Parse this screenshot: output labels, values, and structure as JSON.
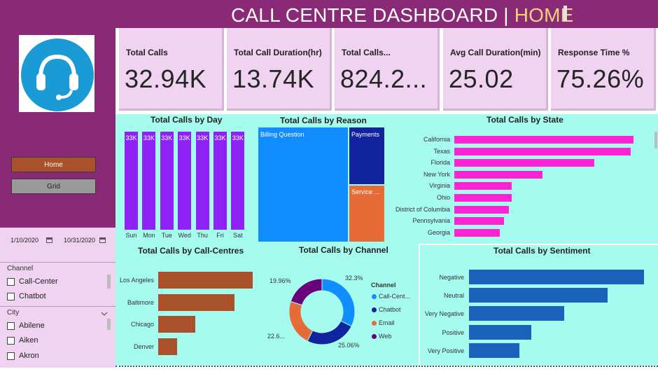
{
  "header": {
    "title": "CALL CENTRE DASHBOARD",
    "separator": " | ",
    "page": "HOME"
  },
  "nav": {
    "home_label": "Home",
    "grid_label": "Grid"
  },
  "filters": {
    "date_start": "1/10/2020",
    "date_end": "10/31/2020",
    "channel": {
      "label": "Channel",
      "options": [
        "Call-Center",
        "Chatbot"
      ]
    },
    "city": {
      "label": "City",
      "options": [
        "Abilene",
        "Aiken",
        "Akron"
      ]
    }
  },
  "kpis": [
    {
      "label": "Total Calls",
      "value": "32.94K"
    },
    {
      "label": "Total Call Duration(hr)",
      "value": "13.74K"
    },
    {
      "label": "Total Calls...",
      "value": "824.2..."
    },
    {
      "label": "Avg Call Duration(min)",
      "value": "25.02"
    },
    {
      "label": "Response Time %",
      "value": "75.26%"
    }
  ],
  "colors": {
    "header": "#8a2a77",
    "panel": "#a6fbef",
    "kpi_card": "#f0d3f0",
    "accent_highlight": "#f2d27a"
  },
  "icons": {
    "logo": "headset-support-icon",
    "calendar": "calendar-icon",
    "chevron": "chevron-down-icon"
  },
  "chart_data": [
    {
      "id": "calls_by_day",
      "type": "bar",
      "title": "Total Calls by Day",
      "categories": [
        "Sun",
        "Mon",
        "Tue",
        "Wed",
        "Thu",
        "Fri",
        "Sat"
      ],
      "values": [
        33,
        33,
        33,
        33,
        33,
        33,
        33
      ],
      "data_labels": [
        "33K",
        "33K",
        "33K",
        "33K",
        "33K",
        "33K",
        "33K"
      ],
      "color": "#8e22f5"
    },
    {
      "id": "calls_by_reason",
      "type": "treemap",
      "title": "Total Calls by Reason",
      "categories": [
        "Billing Question",
        "Payments",
        "Service ..."
      ],
      "colors": [
        "#118dff",
        "#12239e",
        "#e66c37"
      ]
    },
    {
      "id": "calls_by_state",
      "type": "bar",
      "orientation": "horizontal",
      "title": "Total Calls by State",
      "categories": [
        "California",
        "Texas",
        "Florida",
        "New York",
        "Virginia",
        "Ohio",
        "District of Columbia",
        "Pennsylvania",
        "Georgia"
      ],
      "values": [
        255,
        251,
        199,
        126,
        82,
        82,
        78,
        71,
        65
      ],
      "color": "#ff22d4"
    },
    {
      "id": "calls_by_centre",
      "type": "bar",
      "orientation": "horizontal",
      "title": "Total Calls by Call-Centres",
      "categories": [
        "Los Angeles",
        "Baltimore",
        "Chicago",
        "Denver"
      ],
      "values": [
        135,
        109,
        53,
        27
      ],
      "color": "#a9512b"
    },
    {
      "id": "calls_by_channel",
      "type": "pie",
      "title": "Total Calls by Channel",
      "legend_title": "Channel",
      "legend": "right",
      "series": [
        {
          "name": "Call-Cent...",
          "value": 32.3,
          "label": "32.3%",
          "color": "#118dff"
        },
        {
          "name": "Chatbot",
          "value": 25.06,
          "label": "25.06%",
          "color": "#12239e"
        },
        {
          "name": "Email",
          "value": 22.68,
          "label": "22.6...",
          "color": "#e66c37"
        },
        {
          "name": "Web",
          "value": 19.96,
          "label": "19.96%",
          "color": "#6b007b"
        }
      ]
    },
    {
      "id": "calls_by_sentiment",
      "type": "bar",
      "orientation": "horizontal",
      "title": "Total Calls by Sentiment",
      "categories": [
        "Negative",
        "Neutral",
        "Very Negative",
        "Positive",
        "Very Positive"
      ],
      "values": [
        250,
        198,
        136,
        89,
        72
      ],
      "color": "#1b63ba"
    }
  ]
}
